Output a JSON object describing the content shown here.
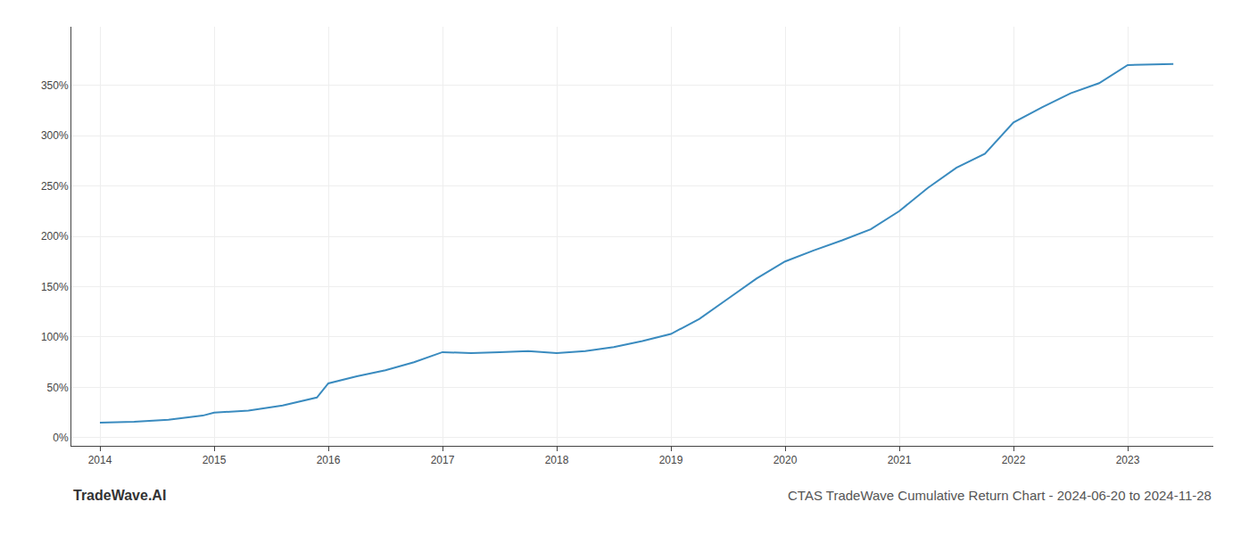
{
  "chart_data": {
    "type": "line",
    "title": "CTAS TradeWave Cumulative Return Chart - 2024-06-20 to 2024-11-28",
    "annotations": [
      "TradeWave.AI"
    ],
    "x": [
      2014.0,
      2014.3,
      2014.6,
      2014.9,
      2015.0,
      2015.3,
      2015.6,
      2015.9,
      2016.0,
      2016.25,
      2016.5,
      2016.75,
      2017.0,
      2017.25,
      2017.5,
      2017.75,
      2018.0,
      2018.25,
      2018.5,
      2018.75,
      2019.0,
      2019.25,
      2019.5,
      2019.75,
      2020.0,
      2020.25,
      2020.5,
      2020.75,
      2021.0,
      2021.25,
      2021.5,
      2021.75,
      2022.0,
      2022.25,
      2022.5,
      2022.75,
      2023.0,
      2023.4
    ],
    "values": [
      15,
      16,
      18,
      22,
      25,
      27,
      32,
      40,
      54,
      61,
      67,
      75,
      85,
      84,
      85,
      86,
      84,
      86,
      90,
      96,
      103,
      118,
      138,
      158,
      175,
      186,
      196,
      207,
      225,
      248,
      268,
      282,
      313,
      328,
      342,
      352,
      370,
      371
    ],
    "color": "#3a8bbf",
    "xlim": [
      2013.75,
      2023.75
    ],
    "ylim": [
      -8,
      408
    ],
    "xticks": [
      2014,
      2015,
      2016,
      2017,
      2018,
      2019,
      2020,
      2021,
      2022,
      2023
    ],
    "yticks": [
      {
        "value": 0,
        "label": "0%"
      },
      {
        "value": 50,
        "label": "50%"
      },
      {
        "value": 100,
        "label": "100%"
      },
      {
        "value": 150,
        "label": "150%"
      },
      {
        "value": 200,
        "label": "200%"
      },
      {
        "value": 250,
        "label": "250%"
      },
      {
        "value": 300,
        "label": "300%"
      },
      {
        "value": 350,
        "label": "350%"
      }
    ],
    "grid": true
  }
}
